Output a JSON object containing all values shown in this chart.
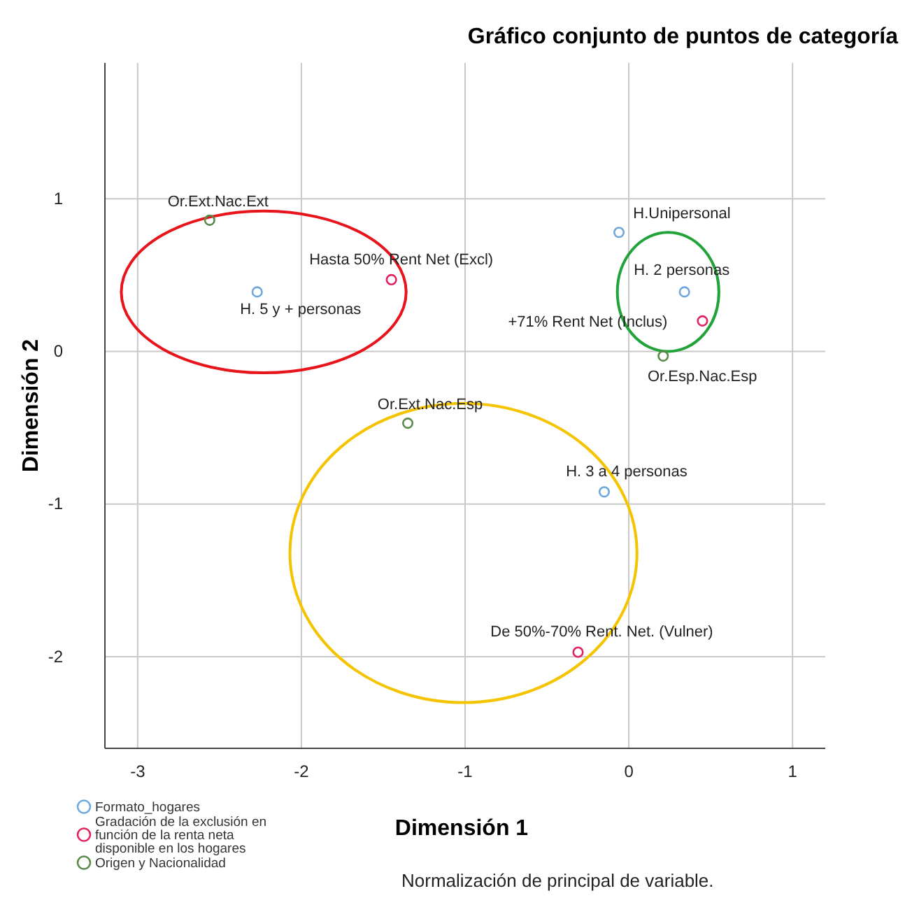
{
  "chart_data": {
    "type": "scatter",
    "title": "Gráfico conjunto de puntos de categoría",
    "xlabel": "Dimensión 1",
    "ylabel": "Dimensión 2",
    "xlim": [
      -3.2,
      1.2
    ],
    "xticks": [
      -3,
      -2,
      -1,
      0,
      1
    ],
    "ylim": [
      -2.6,
      1.89
    ],
    "yticks": [
      -2,
      -1,
      0,
      1
    ],
    "grid": true,
    "legend": "bottom left",
    "marker": "circle",
    "series": [
      {
        "name": "Formato_hogares",
        "color": "#6fa8dc",
        "x": [
          -0.06,
          0.34,
          -2.27,
          -0.15
        ],
        "values": [
          0.78,
          0.39,
          0.39,
          -0.92
        ]
      },
      {
        "name": "Gradación de la exclusión en función de la renta neta disponible en los hogares",
        "color": "#e0245e",
        "x": [
          -1.45,
          0.45,
          -0.31
        ],
        "values": [
          0.47,
          0.2,
          -1.97
        ]
      },
      {
        "name": "Origen y Nacionalidad",
        "color": "#5b8a4c",
        "x": [
          -2.56,
          0.21,
          -1.35
        ],
        "values": [
          0.86,
          -0.03,
          -0.47
        ]
      }
    ],
    "annotations": [
      {
        "text": "H.Unipersonal",
        "x": -0.06,
        "y": 0.78
      },
      {
        "text": "H. 2 personas",
        "x": 0.34,
        "y": 0.39
      },
      {
        "text": "H. 5 y + personas",
        "x": -2.27,
        "y": 0.39
      },
      {
        "text": "H. 3 a 4 personas",
        "x": -0.15,
        "y": -0.92
      },
      {
        "text": "Hasta 50% Rent Net (Excl)",
        "x": -1.45,
        "y": 0.47
      },
      {
        "text": "+71% Rent Net (Inclus)",
        "x": 0.45,
        "y": 0.2
      },
      {
        "text": "De 50%-70% Rent. Net. (Vulner)",
        "x": -0.31,
        "y": -1.97
      },
      {
        "text": "Or.Ext.Nac.Ext",
        "x": -2.56,
        "y": 0.86
      },
      {
        "text": "Or.Esp.Nac.Esp",
        "x": 0.21,
        "y": -0.03
      },
      {
        "text": "Or.Ext.Nac.Esp",
        "x": -1.35,
        "y": -0.47
      },
      "Normalización de principal de variable."
    ]
  }
}
